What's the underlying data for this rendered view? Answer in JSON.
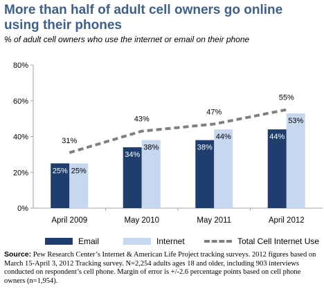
{
  "title": "More than half of adult cell owners go online using their phones",
  "subtitle": "% of adult cell owners who use the internet or email on their phone",
  "colors": {
    "email": "#1f3e6e",
    "internet": "#c7d7ef",
    "line": "#808080",
    "title": "#3f5f8a"
  },
  "legend": {
    "email": "Email",
    "internet": "Internet",
    "total": "Total Cell Internet Use"
  },
  "source": {
    "label": "Source:",
    "text": "Pew Research Center’s Internet & American Life Project tracking surveys. 2012 figures based on March 15-April 3, 2012 Tracking survey. N=2,254 adults ages 18 and older, including 903 interviews conducted on respondent’s cell phone. Margin of error is +/-2.6 percentage points based on cell phone owners (n=1,954)."
  },
  "chart_data": {
    "type": "bar",
    "categories": [
      "April 2009",
      "May 2010",
      "May 2011",
      "April 2012"
    ],
    "series": [
      {
        "name": "Email",
        "type": "bar",
        "values": [
          25,
          34,
          38,
          44
        ],
        "labels": [
          "25%",
          "34%",
          "38%",
          "44%"
        ]
      },
      {
        "name": "Internet",
        "type": "bar",
        "values": [
          25,
          38,
          44,
          53
        ],
        "labels": [
          "25%",
          "38%",
          "44%",
          "53%"
        ]
      },
      {
        "name": "Total Cell Internet Use",
        "type": "line",
        "values": [
          31,
          43,
          47,
          55
        ],
        "labels": [
          "31%",
          "43%",
          "47%",
          "55%"
        ]
      }
    ],
    "ylim": [
      0,
      80
    ],
    "yticks": [
      "0%",
      "20%",
      "40%",
      "60%",
      "80%"
    ],
    "grid": false,
    "legend_position": "bottom"
  }
}
